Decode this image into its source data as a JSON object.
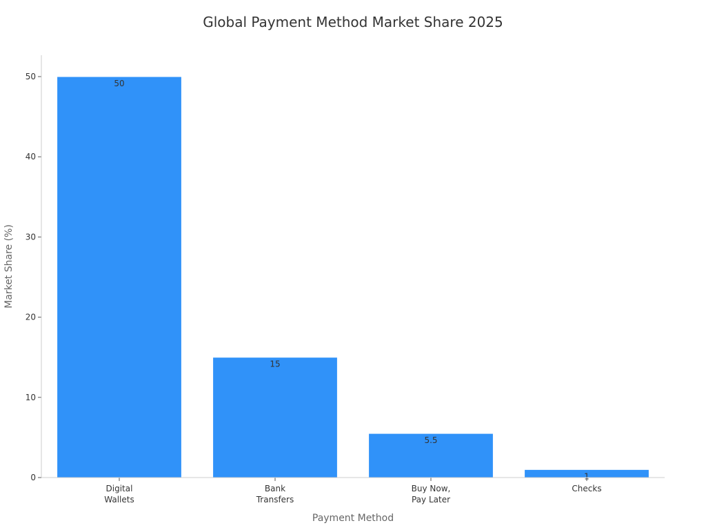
{
  "chart_data": {
    "type": "bar",
    "title": "Global Payment Method Market Share 2025",
    "xlabel": "Payment Method",
    "ylabel": "Market Share (%)",
    "categories": [
      [
        "Digital",
        "Wallets"
      ],
      [
        "Bank",
        "Transfers"
      ],
      [
        "Buy Now,",
        "Pay Later"
      ],
      [
        "Checks"
      ]
    ],
    "values": [
      50,
      15,
      5.5,
      1
    ],
    "data_labels": [
      "50",
      "15",
      "5.5",
      "1"
    ],
    "yticks": [
      0,
      10,
      20,
      30,
      40,
      50
    ],
    "ylim": [
      0,
      50
    ],
    "grid": false,
    "legend": "none",
    "colors": {
      "bar": "#3092f9",
      "bar_edge": "#ffffff",
      "axis": "#cccccc"
    }
  }
}
